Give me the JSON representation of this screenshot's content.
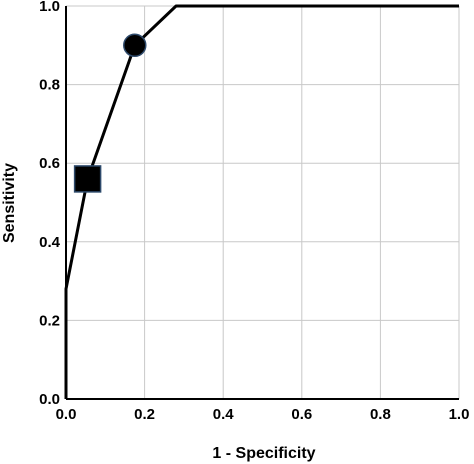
{
  "chart_data": {
    "type": "line",
    "title": "",
    "xlabel": "1 - Specificity",
    "ylabel": "Sensitivity",
    "xlim": [
      0,
      1
    ],
    "ylim": [
      0,
      1
    ],
    "x_ticks": [
      "0.0",
      "0.2",
      "0.4",
      "0.6",
      "0.8",
      "1.0"
    ],
    "y_ticks": [
      "0.0",
      "0.2",
      "0.4",
      "0.6",
      "0.8",
      "1.0"
    ],
    "grid": true,
    "legend": "none",
    "series": [
      {
        "x": [
          0.0,
          0.0,
          0.055,
          0.175,
          0.28,
          1.0
        ],
        "y": [
          0.0,
          0.28,
          0.56,
          0.9,
          1.0,
          1.0
        ],
        "color": "#000000"
      }
    ],
    "markers": [
      {
        "shape": "square",
        "x": 0.055,
        "y": 0.56,
        "color": "#000000",
        "edge_color": "#2e4a6b"
      },
      {
        "shape": "circle",
        "x": 0.175,
        "y": 0.9,
        "color": "#000000",
        "edge_color": "#2e4a6b"
      }
    ]
  }
}
